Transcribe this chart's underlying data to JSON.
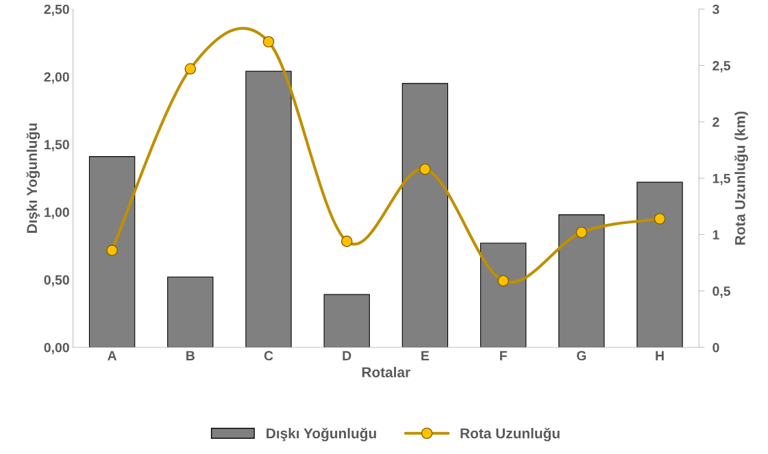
{
  "chart_data": {
    "type": "bar",
    "xlabel": "Rotalar",
    "ylabel": "Dışkı Yoğunluğu",
    "y2label": "Rota Uzunluğu (km)",
    "categories": [
      "A",
      "B",
      "C",
      "D",
      "E",
      "F",
      "G",
      "H"
    ],
    "series": [
      {
        "name": "Dışkı Yoğunluğu",
        "color": "#808080",
        "values": [
          1.41,
          0.52,
          2.04,
          0.39,
          1.95,
          0.77,
          0.98,
          1.22
        ]
      },
      {
        "name": "Rota Uzunluğu",
        "type": "line",
        "axis": "y2",
        "color": "#bf9000",
        "marker": "circle",
        "values": [
          0.86,
          2.47,
          2.71,
          0.94,
          1.58,
          0.59,
          1.02,
          1.14
        ]
      }
    ],
    "ylim": [
      0,
      2.5
    ],
    "yticks": [
      {
        "value": 0,
        "label": "0,00"
      },
      {
        "value": 0.5,
        "label": "0,50"
      },
      {
        "value": 1,
        "label": "1,00"
      },
      {
        "value": 1.5,
        "label": "1,50"
      },
      {
        "value": 2,
        "label": "2,00"
      },
      {
        "value": 2.5,
        "label": "2,50"
      }
    ],
    "y2lim": [
      0,
      3
    ],
    "y2ticks": [
      0,
      {
        "value": 0.5,
        "label": "0,5"
      },
      1,
      {
        "value": 1.5,
        "label": "1,5"
      },
      2,
      {
        "value": 2.5,
        "label": "2,5"
      },
      3
    ],
    "grid": false,
    "legend": "bottom"
  }
}
